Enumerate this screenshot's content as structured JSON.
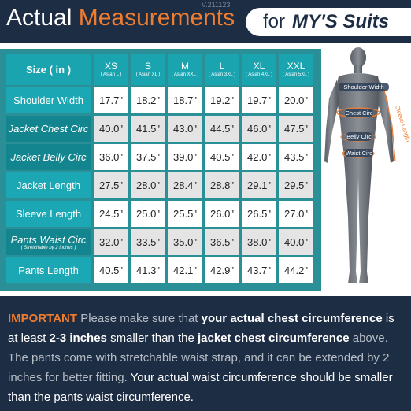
{
  "header": {
    "title_a": "Actual ",
    "title_b": "Measurements",
    "version": "V.211123",
    "for": "for",
    "brand": "MY'S Suits"
  },
  "table": {
    "size_label": "Size ( in )",
    "columns": [
      {
        "size": "XS",
        "asian": "( Asian L )"
      },
      {
        "size": "S",
        "asian": "( Asian XL )"
      },
      {
        "size": "M",
        "asian": "( Asian XXL )"
      },
      {
        "size": "L",
        "asian": "( Asian 3XL )"
      },
      {
        "size": "XL",
        "asian": "( Asian 4XL )"
      },
      {
        "size": "XXL",
        "asian": "( Asian 5XL )"
      }
    ],
    "rows": [
      {
        "label": "Shoulder Width",
        "sub": "",
        "values": [
          "17.7\"",
          "18.2\"",
          "18.7\"",
          "19.2\"",
          "19.7\"",
          "20.0\""
        ]
      },
      {
        "label": "Jacket Chest Circ",
        "sub": "",
        "values": [
          "40.0\"",
          "41.5\"",
          "43.0\"",
          "44.5\"",
          "46.0\"",
          "47.5\""
        ]
      },
      {
        "label": "Jacket Belly Circ",
        "sub": "",
        "values": [
          "36.0\"",
          "37.5\"",
          "39.0\"",
          "40.5\"",
          "42.0\"",
          "43.5\""
        ]
      },
      {
        "label": "Jacket Length",
        "sub": "",
        "values": [
          "27.5\"",
          "28.0\"",
          "28.4\"",
          "28.8\"",
          "29.1\"",
          "29.5\""
        ]
      },
      {
        "label": "Sleeve Length",
        "sub": "",
        "values": [
          "24.5\"",
          "25.0\"",
          "25.5\"",
          "26.0\"",
          "26.5\"",
          "27.0\""
        ]
      },
      {
        "label": "Pants Waist Circ",
        "sub": "( Stretchable by 2 inches )",
        "values": [
          "32.0\"",
          "33.5\"",
          "35.0\"",
          "36.5\"",
          "38.0\"",
          "40.0\""
        ]
      },
      {
        "label": "Pants Length",
        "sub": "",
        "values": [
          "40.5\"",
          "41.3\"",
          "42.1\"",
          "42.9\"",
          "43.7\"",
          "44.2\""
        ]
      }
    ]
  },
  "figure": {
    "shoulder": "Shoulder Width",
    "chest": "Chest Circ",
    "belly": "Belly Circ",
    "waist": "Waist Circ",
    "sleeve": "Sleeve Length"
  },
  "note": {
    "important": "IMPORTANT",
    "t1": " Please make sure that ",
    "b1": "your actual chest circumference",
    "t2": " is at least ",
    "b2": "2-3 inches",
    "t3": " smaller than the ",
    "b3": "jacket chest circumference",
    "t4": " above. The pants come with stretchable waist strap, and it can be extended by 2 inches for better fitting. ",
    "t5": "Your actual waist circumference should be smaller than the pants waist circumference."
  },
  "colors": {
    "navy": "#1d2d44",
    "orange": "#f07c2e",
    "teal": "#19a4b0",
    "teal_dark": "#12858f"
  }
}
